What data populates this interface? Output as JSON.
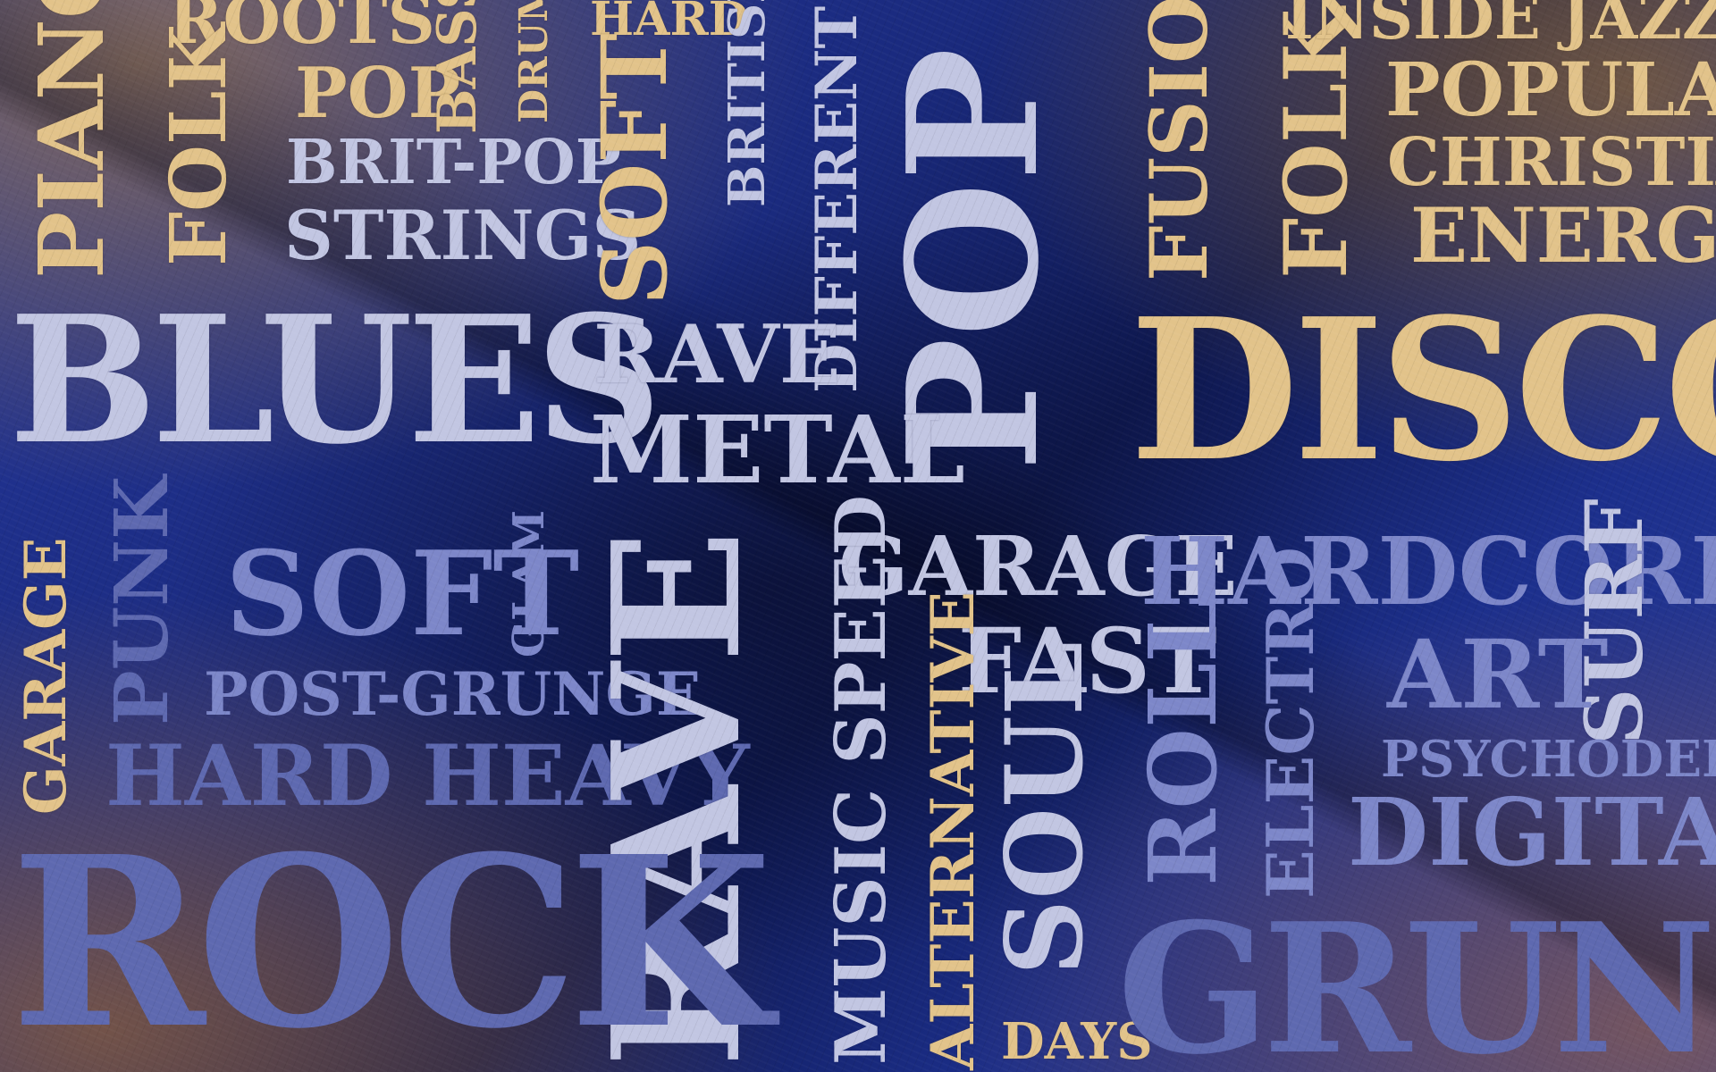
{
  "words": {
    "piano": "PIANO",
    "roots": "ROOTS",
    "folk_left": "FOLK",
    "pop_small": "POP",
    "bass": "BASS",
    "drums": "DRUMS",
    "brit_pop": "BRIT-POP",
    "strings": "STRINGS",
    "hard_top": "HARD",
    "soft_top": "SOFT",
    "british": "BRITISH",
    "different": "DIFFERENT",
    "pop_big": "POP",
    "fusion": "FUSION",
    "folk_right": "FOLK",
    "inside_jazz": "INSIDE JAZZ",
    "popular": "POPULAR",
    "christian": "CHRISTIAN",
    "energy": "ENERGY",
    "blues": "BLUES",
    "rave_small": "RAVE",
    "metal": "METAL",
    "disco": "DISCO",
    "garage_left": "GARAGE",
    "punk": "PUNK",
    "soft_mid": "SOFT",
    "glam": "GLAM",
    "post_grunge": "POST-GRUNGE",
    "hard_heavy": "HARD HEAVY",
    "rave_big": "RAVE",
    "garage_mid": "GARAGE",
    "fast": "FAST",
    "hardcore": "HARDCORE",
    "surf": "SURF",
    "art": "ART",
    "psychodelic": "PSYCHODELIC",
    "digital": "DIGITAL",
    "music_speed": "MUSIC SPEED",
    "alternative": "ALTERNATIVE",
    "soul": "SOUL",
    "roll": "ROLL",
    "electro": "ELECTRO",
    "rock": "ROCK",
    "grunge": "GRUNGE",
    "days": "DAYS"
  },
  "colors": {
    "gold": "#e2c38a",
    "light": "#c2c6e2",
    "blue": "#7d87c9",
    "background": "#1a2a7e"
  }
}
